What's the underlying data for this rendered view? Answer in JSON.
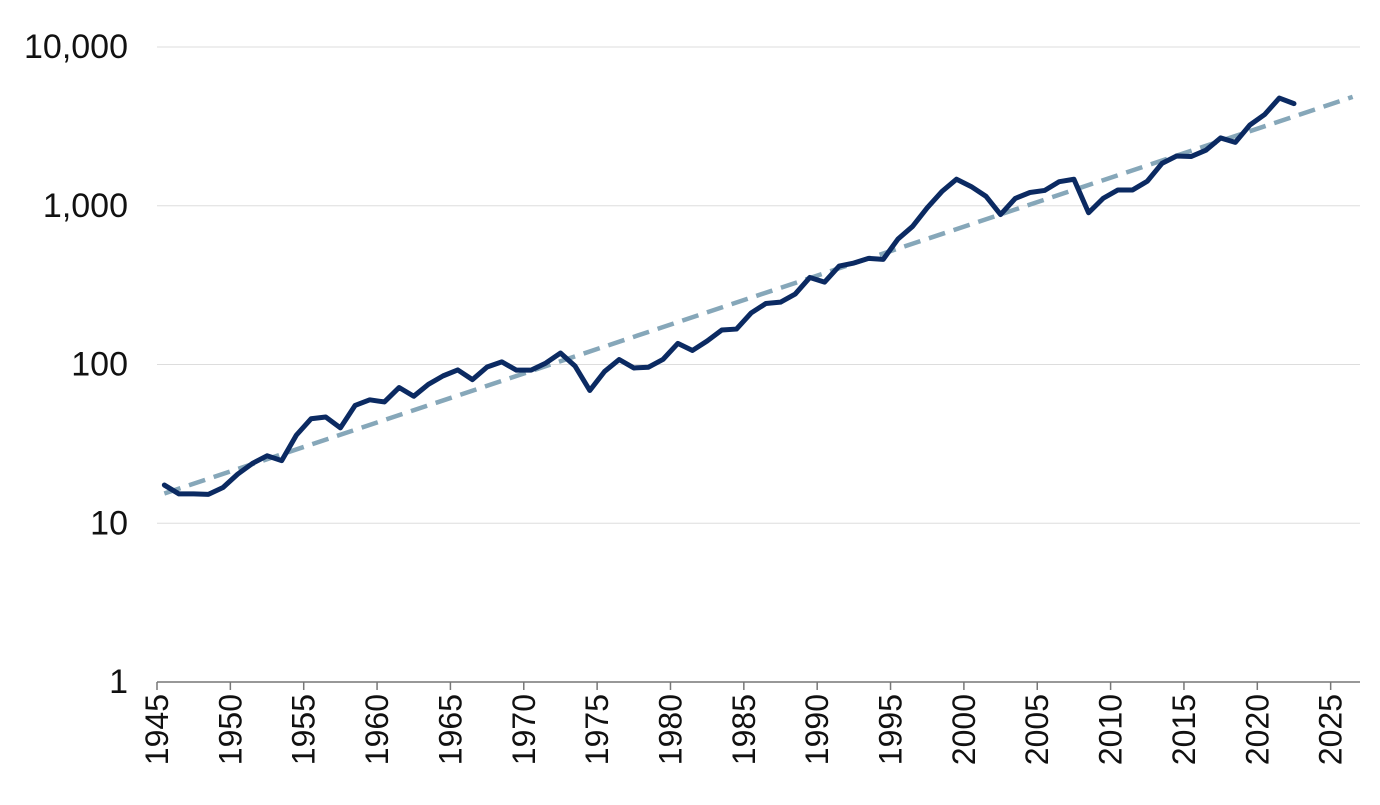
{
  "colors": {
    "series": "#0b2a62",
    "trend": "#86a7b9",
    "grid": "#dddddd",
    "axis": "#777777",
    "text": "#111111"
  },
  "chart_data": {
    "type": "line",
    "title": "",
    "xlabel": "",
    "ylabel": "",
    "y_scale": "log",
    "ylim": [
      1,
      10000
    ],
    "xlim": [
      1945,
      2027
    ],
    "grid": "horizontal",
    "legend": "none",
    "y_ticks": [
      {
        "value": 1,
        "label": "1"
      },
      {
        "value": 10,
        "label": "10"
      },
      {
        "value": 100,
        "label": "100"
      },
      {
        "value": 1000,
        "label": "1,000"
      },
      {
        "value": 10000,
        "label": "10,000"
      }
    ],
    "x_ticks": [
      {
        "value": 1945,
        "label": "1945"
      },
      {
        "value": 1950,
        "label": "1950"
      },
      {
        "value": 1955,
        "label": "1955"
      },
      {
        "value": 1960,
        "label": "1960"
      },
      {
        "value": 1965,
        "label": "1965"
      },
      {
        "value": 1970,
        "label": "1970"
      },
      {
        "value": 1975,
        "label": "1975"
      },
      {
        "value": 1980,
        "label": "1980"
      },
      {
        "value": 1985,
        "label": "1985"
      },
      {
        "value": 1990,
        "label": "1990"
      },
      {
        "value": 1995,
        "label": "1995"
      },
      {
        "value": 2000,
        "label": "2000"
      },
      {
        "value": 2005,
        "label": "2005"
      },
      {
        "value": 2010,
        "label": "2010"
      },
      {
        "value": 2015,
        "label": "2015"
      },
      {
        "value": 2020,
        "label": "2020"
      },
      {
        "value": 2025,
        "label": "2025"
      }
    ],
    "series": [
      {
        "style": "solid",
        "x": [
          1945.5,
          1946.5,
          1947.5,
          1948.5,
          1949.5,
          1950.5,
          1951.5,
          1952.5,
          1953.5,
          1954.5,
          1955.5,
          1956.5,
          1957.5,
          1958.5,
          1959.5,
          1960.5,
          1961.5,
          1962.5,
          1963.5,
          1964.5,
          1965.5,
          1966.5,
          1967.5,
          1968.5,
          1969.5,
          1970.5,
          1971.5,
          1972.5,
          1973.5,
          1974.5,
          1975.5,
          1976.5,
          1977.5,
          1978.5,
          1979.5,
          1980.5,
          1981.5,
          1982.5,
          1983.5,
          1984.5,
          1985.5,
          1986.5,
          1987.5,
          1988.5,
          1989.5,
          1990.5,
          1991.5,
          1992.5,
          1993.5,
          1994.5,
          1995.5,
          1996.5,
          1997.5,
          1998.5,
          1999.5,
          2000.5,
          2001.5,
          2002.5,
          2003.5,
          2004.5,
          2005.5,
          2006.5,
          2007.5,
          2008.5,
          2009.5,
          2010.5,
          2011.5,
          2012.5,
          2013.5,
          2014.5,
          2015.5,
          2016.5,
          2017.5,
          2018.5,
          2019.5,
          2020.5,
          2021.5,
          2022.5
        ],
        "values": [
          17.4,
          15.3,
          15.3,
          15.2,
          16.8,
          20.4,
          23.8,
          26.6,
          24.8,
          35.9,
          45.5,
          46.7,
          39.9,
          55.2,
          59.9,
          58.1,
          71.6,
          63.1,
          75.0,
          84.8,
          92.4,
          80.3,
          96.5,
          103.9,
          92.1,
          92.2,
          102.1,
          118.1,
          97.6,
          68.6,
          90.2,
          107.5,
          95.1,
          96.1,
          107.9,
          135.8,
          122.6,
          140.6,
          164.9,
          167.2,
          211.3,
          242.2,
          247.1,
          277.7,
          353.4,
          330.2,
          417.1,
          435.7,
          466.5,
          459.3,
          615.9,
          740.7,
          970.4,
          1229.2,
          1469.3,
          1320.3,
          1148.1,
          879.8,
          1111.9,
          1211.9,
          1248.3,
          1418.3,
          1468.4,
          903.3,
          1115.1,
          1257.6,
          1257.6,
          1426.2,
          1848.4,
          2058.9,
          2043.9,
          2238.8,
          2673.6,
          2506.9,
          3230.8,
          3756.1,
          4766.2,
          4400.0
        ]
      },
      {
        "style": "dashed",
        "x": [
          1945.5,
          2026.5
        ],
        "values": [
          15.4,
          4850
        ]
      }
    ]
  }
}
